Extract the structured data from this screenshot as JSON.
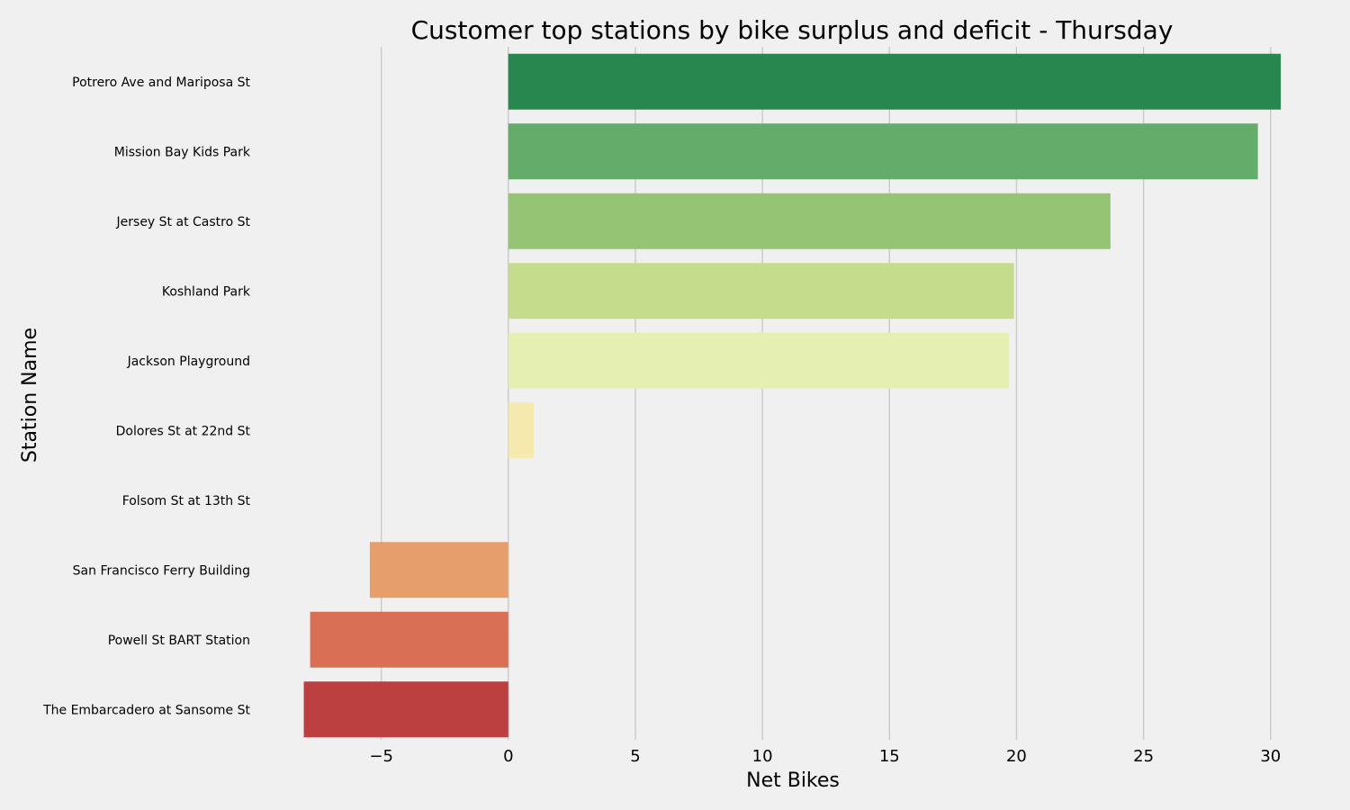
{
  "chart_data": {
    "type": "bar",
    "orientation": "horizontal",
    "title": "Customer top stations by bike surplus and deficit - Thursday",
    "xlabel": "Net Bikes",
    "ylabel": "Station Name",
    "xlim": [
      -8.6,
      31.0
    ],
    "xticks": [
      -5,
      0,
      5,
      10,
      15,
      20,
      25,
      30
    ],
    "xtick_labels": [
      "−5",
      "0",
      "5",
      "10",
      "15",
      "20",
      "25",
      "30"
    ],
    "grid": "vertical",
    "legend": "none",
    "categories": [
      "Potrero Ave and Mariposa St",
      "Mission Bay Kids Park",
      "Jersey St at Castro St",
      "Koshland Park",
      "Jackson Playground",
      "Dolores St at 22nd St",
      "Folsom St at 13th St",
      "San Francisco Ferry Building",
      "Powell St BART Station",
      "The Embarcadero at Sansome St"
    ],
    "values": [
      30.4,
      29.5,
      23.7,
      19.9,
      19.7,
      1.0,
      0.0,
      -5.45,
      -7.8,
      -8.05
    ],
    "colors": [
      "#27874f",
      "#64ac69",
      "#95c574",
      "#c4dc8b",
      "#e6efb2",
      "#f6e9ad",
      "#f2f0e6",
      "#e79e6d",
      "#d96f55",
      "#bd4040"
    ]
  }
}
